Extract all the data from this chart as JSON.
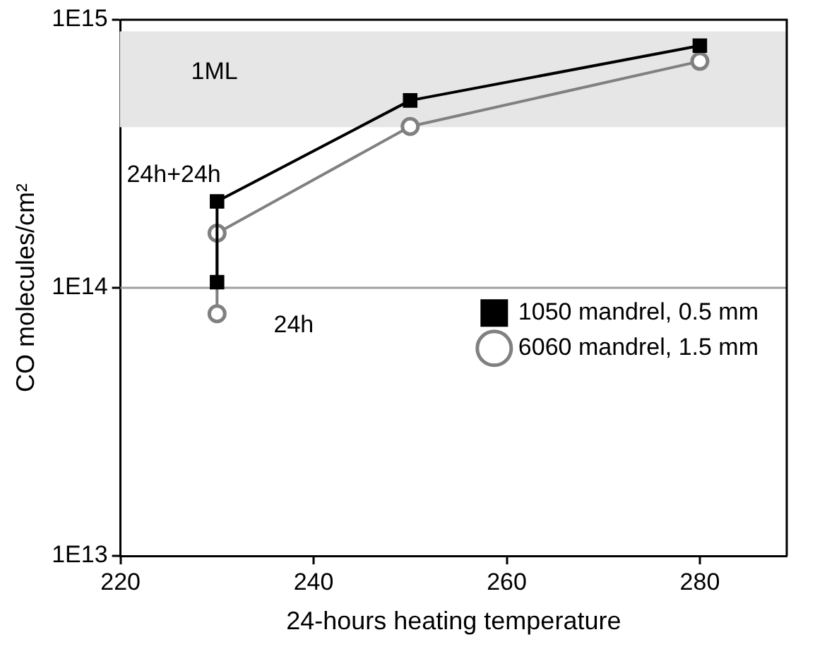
{
  "chart_data": {
    "type": "line",
    "xlabel": "24-hours heating temperature",
    "ylabel": "CO molecules/cm²",
    "log": "y",
    "xlim": [
      220,
      289
    ],
    "xticks": [
      220,
      240,
      260,
      280
    ],
    "ylim": [
      10000000000000.0,
      1000000000000000.0
    ],
    "yticks": [
      {
        "value": 10000000000000.0,
        "label": "1E13"
      },
      {
        "value": 100000000000000.0,
        "label": "1E14"
      },
      {
        "value": 1000000000000000.0,
        "label": "1E15"
      }
    ],
    "series": [
      {
        "name": "1050 mandrel, 0.5 mm",
        "color": "#000000",
        "marker": "square",
        "x": [
          230,
          230,
          250,
          280
        ],
        "values": [
          105000000000000.0,
          210000000000000.0,
          500000000000000.0,
          800000000000000.0
        ]
      },
      {
        "name": "6060 mandrel, 1.5 mm",
        "color": "#808080",
        "marker": "circle",
        "x": [
          230,
          230,
          250,
          280
        ],
        "values": [
          80000000000000.0,
          160000000000000.0,
          400000000000000.0,
          700000000000000.0
        ]
      }
    ],
    "ref_lines": [
      {
        "axis": "y",
        "value": 100000000000000.0,
        "color": "#a0a0a0"
      }
    ],
    "bands": [
      {
        "axis": "y",
        "from": 400000000000000.0,
        "to": 900000000000000.0,
        "label": "1ML",
        "color": "#e6e6e6"
      }
    ],
    "annotations": [
      "24h+24h",
      "24h"
    ],
    "legend": "right",
    "grid": false
  }
}
